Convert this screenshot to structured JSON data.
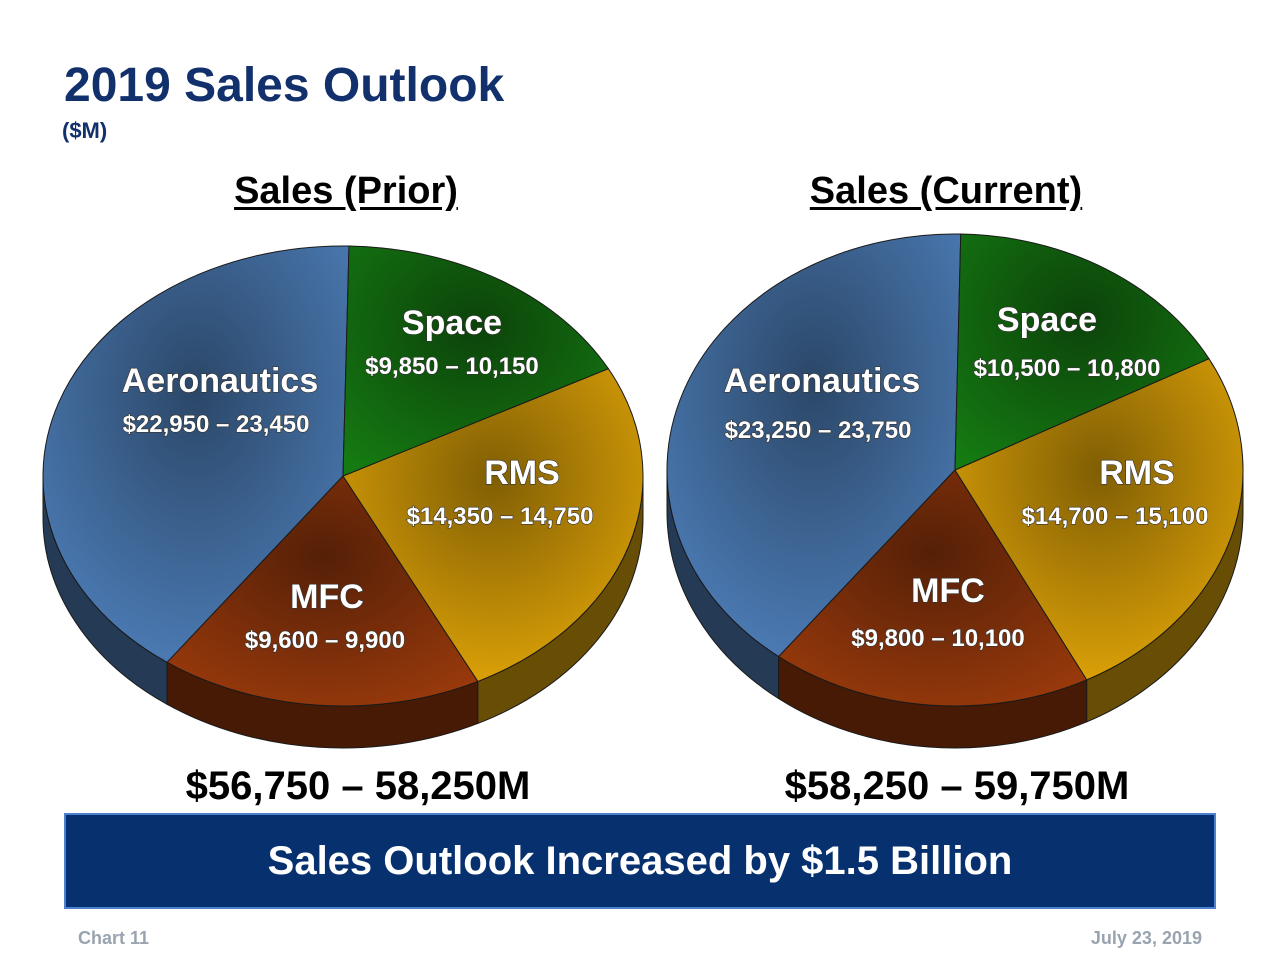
{
  "title": "2019 Sales Outlook",
  "unit": "($M)",
  "banner": "Sales Outlook Increased by $1.5 Billion",
  "footer": {
    "left": "Chart 11",
    "right": "July 23, 2019"
  },
  "colors": {
    "title": "#12306b",
    "banner": "#07306f",
    "Aeronautics": "#4f81bd",
    "Space": "#9b3a0c",
    "RMS": "#e8aa08",
    "MFC": "#157a12"
  },
  "chart_data": [
    {
      "type": "pie",
      "title": "Sales (Prior)",
      "total": "$56,750 – 58,250M",
      "slices": [
        {
          "name": "Aeronautics",
          "label": "$22,950 – 23,450",
          "value": 23200
        },
        {
          "name": "Space",
          "label": "$9,850 – 10,150",
          "value": 10000
        },
        {
          "name": "RMS",
          "label": "$14,350 – 14,750",
          "value": 14550
        },
        {
          "name": "MFC",
          "label": "$9,600 – 9,900",
          "value": 9750
        }
      ]
    },
    {
      "type": "pie",
      "title": "Sales (Current)",
      "total": "$58,250 – 59,750M",
      "slices": [
        {
          "name": "Aeronautics",
          "label": "$23,250 – 23,750",
          "value": 23500
        },
        {
          "name": "Space",
          "label": "$10,500 – 10,800",
          "value": 10650
        },
        {
          "name": "RMS",
          "label": "$14,700 – 15,100",
          "value": 14900
        },
        {
          "name": "MFC",
          "label": "$9,800 – 10,100",
          "value": 9950
        }
      ]
    }
  ]
}
